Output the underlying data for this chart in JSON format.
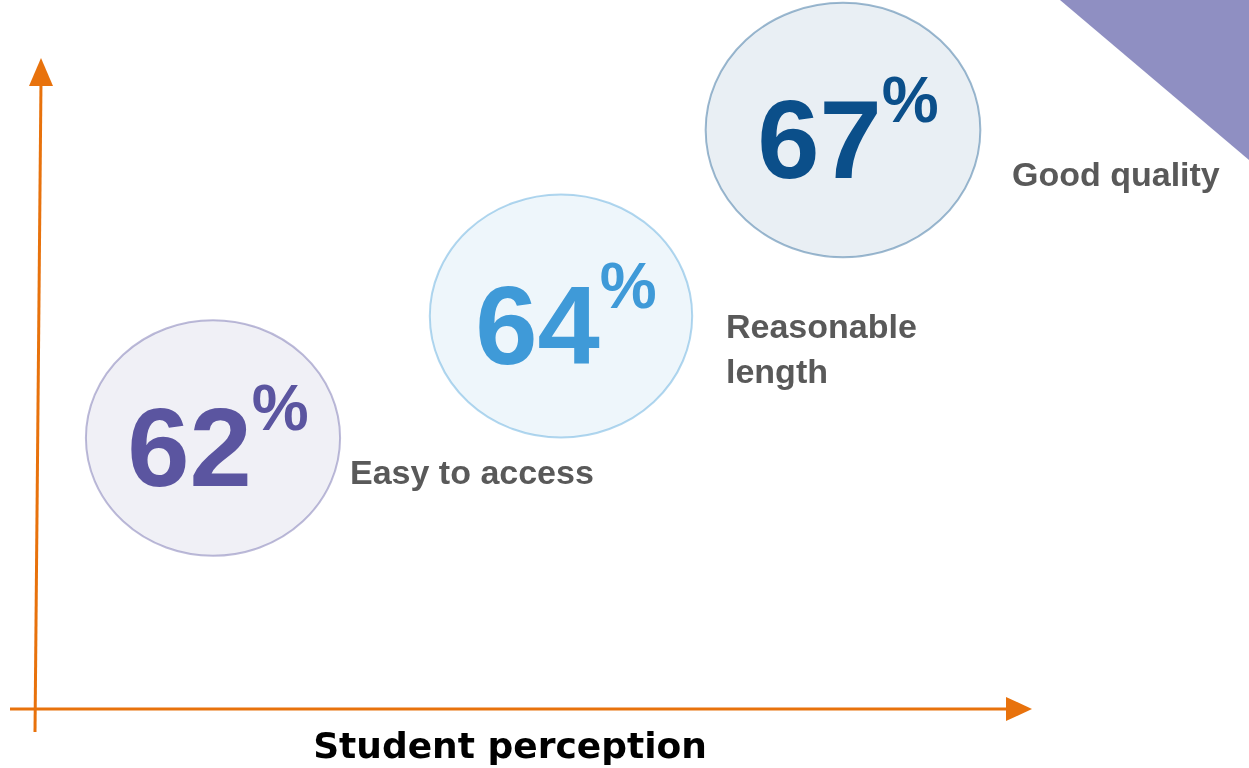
{
  "chart_data": {
    "type": "other",
    "xlabel": "Student perception",
    "categories": [
      "Easy to access",
      "Reasonable length",
      "Good quality"
    ],
    "values": [
      62,
      64,
      67
    ],
    "value_labels": [
      "62%",
      "64%",
      "67%"
    ],
    "colors": [
      "#5b55a0",
      "#3f9ad8",
      "#0b4f8a"
    ]
  }
}
